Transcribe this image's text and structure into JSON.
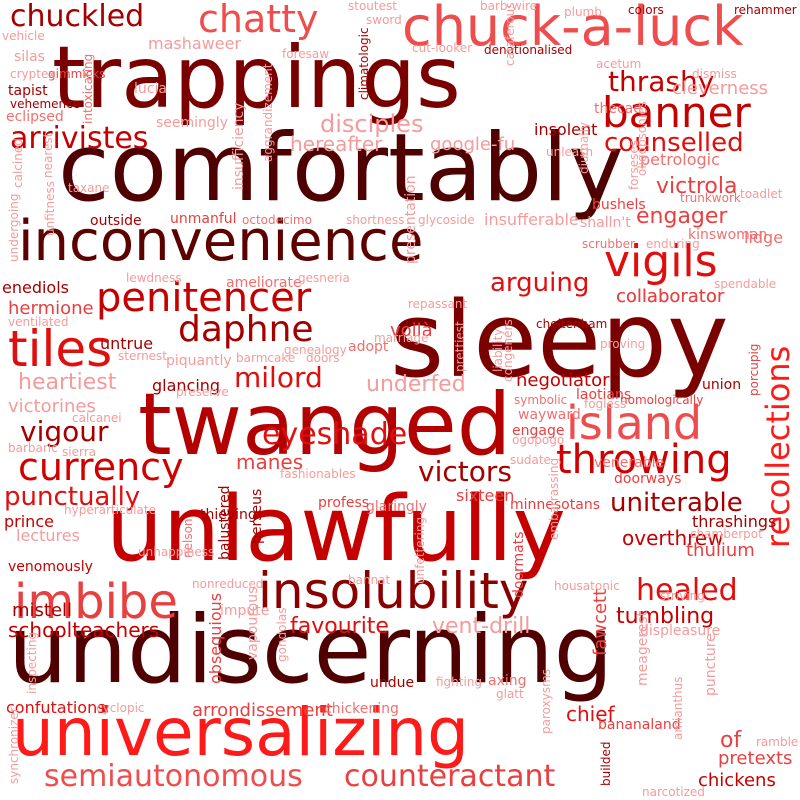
{
  "colors": {
    "background": "#ffffff",
    "palette": [
      "#4f0000",
      "#7a0000",
      "#a50000",
      "#c40000",
      "#e00f0f",
      "#ff1a1a",
      "#ef4d4d",
      "#f07070",
      "#f59b9b",
      "#fac0c0"
    ]
  },
  "words": [
    {
      "text": "trappings",
      "color": "#7a0000"
    },
    {
      "text": "comfortably",
      "color": "#4f0000"
    },
    {
      "text": "undiscerning",
      "color": "#4f0000"
    },
    {
      "text": "sleepy",
      "color": "#7a0000"
    },
    {
      "text": "unlawfully",
      "color": "#c40000"
    },
    {
      "text": "twanged",
      "color": "#b30000"
    },
    {
      "text": "inconvenience",
      "color": "#5c0000"
    },
    {
      "text": "universalizing",
      "color": "#ff1a1a"
    },
    {
      "text": "chuck-a-luck",
      "color": "#ef4d4d"
    },
    {
      "text": "insolubility",
      "color": "#8a0000"
    },
    {
      "text": "penitencer",
      "color": "#c40000"
    },
    {
      "text": "daphne",
      "color": "#a50000"
    },
    {
      "text": "tiles",
      "color": "#e00f0f"
    },
    {
      "text": "island",
      "color": "#ef4d4d"
    },
    {
      "text": "currency",
      "color": "#d10000"
    },
    {
      "text": "throwing",
      "color": "#d10000"
    },
    {
      "text": "imbibe",
      "color": "#e84040"
    },
    {
      "text": "recollections",
      "color": "#ff1a1a"
    },
    {
      "text": "banner",
      "color": "#c40000"
    },
    {
      "text": "vigils",
      "color": "#e00f0f"
    },
    {
      "text": "chatty",
      "color": "#ef4d4d"
    },
    {
      "text": "chuckled",
      "color": "#a50000"
    },
    {
      "text": "thrashy",
      "color": "#c40000"
    },
    {
      "text": "arrivistes",
      "color": "#c40000"
    },
    {
      "text": "eyeshade",
      "color": "#e00f0f"
    },
    {
      "text": "milord",
      "color": "#e00f0f"
    },
    {
      "text": "victors",
      "color": "#a50000"
    },
    {
      "text": "uniterable",
      "color": "#a50000"
    },
    {
      "text": "healed",
      "color": "#e00f0f"
    },
    {
      "text": "punctually",
      "color": "#e00f0f"
    },
    {
      "text": "semiautonomous",
      "color": "#ef4d4d"
    },
    {
      "text": "counteractant",
      "color": "#e84040"
    },
    {
      "text": "disciples",
      "color": "#f59b9b"
    },
    {
      "text": "counselled",
      "color": "#e00f0f"
    },
    {
      "text": "arguing",
      "color": "#e00f0f"
    },
    {
      "text": "vigour",
      "color": "#a50000"
    },
    {
      "text": "engager",
      "color": "#e84040"
    },
    {
      "text": "victrola",
      "color": "#e84040"
    },
    {
      "text": "heartiest",
      "color": "#f59b9b"
    },
    {
      "text": "underfed",
      "color": "#f59b9b"
    },
    {
      "text": "favourite",
      "color": "#e00f0f"
    },
    {
      "text": "vent-drill",
      "color": "#f59b9b"
    },
    {
      "text": "tumbling",
      "color": "#c40000"
    },
    {
      "text": "schoolteachers",
      "color": "#c40000"
    },
    {
      "text": "cleverness",
      "color": "#f59b9b"
    },
    {
      "text": "hermione",
      "color": "#e84040"
    },
    {
      "text": "negotiator",
      "color": "#c40000"
    },
    {
      "text": "collaborator",
      "color": "#e84040"
    },
    {
      "text": "victorines",
      "color": "#f59b9b"
    },
    {
      "text": "manes",
      "color": "#e84040"
    },
    {
      "text": "mistell",
      "color": "#a50000"
    },
    {
      "text": "prince",
      "color": "#c40000"
    },
    {
      "text": "lectures",
      "color": "#f59b9b"
    },
    {
      "text": "venomously",
      "color": "#c40000"
    },
    {
      "text": "overthrew",
      "color": "#c40000"
    },
    {
      "text": "thulium",
      "color": "#e84040"
    },
    {
      "text": "thrashings",
      "color": "#a50000"
    },
    {
      "text": "chickens",
      "color": "#c40000"
    },
    {
      "text": "pretexts",
      "color": "#e84040"
    },
    {
      "text": "of",
      "color": "#e84040"
    },
    {
      "text": "chief",
      "color": "#e00f0f"
    },
    {
      "text": "confutations",
      "color": "#e00f0f"
    },
    {
      "text": "arrondissement",
      "color": "#e84040"
    },
    {
      "text": "chickening",
      "color": "#f07070"
    },
    {
      "text": "hereafter",
      "color": "#f59b9b"
    },
    {
      "text": "google-fu",
      "color": "#f59b9b"
    },
    {
      "text": "insolent",
      "color": "#a50000"
    },
    {
      "text": "mashaweer",
      "color": "#f59b9b"
    },
    {
      "text": "untrue",
      "color": "#a50000"
    },
    {
      "text": "enediols",
      "color": "#a50000"
    },
    {
      "text": "glancing",
      "color": "#a50000"
    },
    {
      "text": "sixteen",
      "color": "#e84040"
    },
    {
      "text": "petrologic",
      "color": "#f07070"
    },
    {
      "text": "lidge",
      "color": "#f07070"
    },
    {
      "text": "displeasure",
      "color": "#f59b9b"
    },
    {
      "text": "bananaland",
      "color": "#e84040"
    },
    {
      "text": "fawcett",
      "color": "#e84040"
    },
    {
      "text": "obsequious",
      "color": "#e84040"
    },
    {
      "text": "outside",
      "color": "#a50000"
    },
    {
      "text": "unmanful",
      "color": "#e84040"
    },
    {
      "text": "octodecimo",
      "color": "#f07070"
    },
    {
      "text": "voilà",
      "color": "#e84040"
    },
    {
      "text": "insufferable",
      "color": "#f59b9b"
    },
    {
      "text": "shalln't",
      "color": "#f59b9b"
    },
    {
      "text": "bushels",
      "color": "#e84040"
    },
    {
      "text": "doormats",
      "color": "#e84040"
    },
    {
      "text": "balustered",
      "color": "#a50000"
    },
    {
      "text": "perseus",
      "color": "#a50000"
    },
    {
      "text": "nelson",
      "color": "#f07070"
    },
    {
      "text": "glaringly",
      "color": "#f07070"
    },
    {
      "text": "profess",
      "color": "#e84040"
    },
    {
      "text": "fashionables",
      "color": "#f59b9b"
    },
    {
      "text": "minnesotans",
      "color": "#e84040"
    },
    {
      "text": "doorways",
      "color": "#e84040"
    },
    {
      "text": "venerable",
      "color": "#f07070"
    },
    {
      "text": "sudate",
      "color": "#f59b9b"
    },
    {
      "text": "engage",
      "color": "#e84040"
    },
    {
      "text": "wayward",
      "color": "#f07070"
    },
    {
      "text": "union",
      "color": "#a50000"
    },
    {
      "text": "porcupig",
      "color": "#e84040"
    },
    {
      "text": "laotians",
      "color": "#e84040"
    },
    {
      "text": "nomologically",
      "color": "#e84040"
    },
    {
      "text": "symbolic",
      "color": "#f07070"
    },
    {
      "text": "fogless",
      "color": "#f59b9b"
    },
    {
      "text": "collaborator",
      "color": "#e84040"
    },
    {
      "text": "gimmicks",
      "color": "#e84040"
    },
    {
      "text": "lucia",
      "color": "#f59b9b"
    },
    {
      "text": "intoxicating",
      "color": "#f07070"
    },
    {
      "text": "insufficiency",
      "color": "#f59b9b"
    },
    {
      "text": "aggrandizement",
      "color": "#f59b9b"
    },
    {
      "text": "climatologic",
      "color": "#a50000"
    },
    {
      "text": "thecae",
      "color": "#f07070"
    },
    {
      "text": "acetum",
      "color": "#f59b9b"
    },
    {
      "text": "dismiss",
      "color": "#f59b9b"
    },
    {
      "text": "rehammer",
      "color": "#a50000"
    },
    {
      "text": "colors",
      "color": "#a50000"
    },
    {
      "text": "plumb",
      "color": "#f59b9b"
    },
    {
      "text": "barb-wire",
      "color": "#f59b9b"
    },
    {
      "text": "cut-looker",
      "color": "#f59b9b"
    },
    {
      "text": "denationalised",
      "color": "#a50000"
    },
    {
      "text": "stoutest",
      "color": "#f59b9b"
    },
    {
      "text": "sword",
      "color": "#f59b9b"
    },
    {
      "text": "foresaw",
      "color": "#f59b9b"
    },
    {
      "text": "vehicle",
      "color": "#f59b9b"
    },
    {
      "text": "silas",
      "color": "#f59b9b"
    },
    {
      "text": "cryptex",
      "color": "#f59b9b"
    },
    {
      "text": "tapist",
      "color": "#a50000"
    },
    {
      "text": "vehemence",
      "color": "#a50000"
    },
    {
      "text": "eclipsed",
      "color": "#f07070"
    },
    {
      "text": "seemingly",
      "color": "#f59b9b"
    },
    {
      "text": "calcined",
      "color": "#f59b9b"
    },
    {
      "text": "nearest",
      "color": "#f59b9b"
    },
    {
      "text": "taxane",
      "color": "#f59b9b"
    },
    {
      "text": "unfitness",
      "color": "#f59b9b"
    },
    {
      "text": "undergoing",
      "color": "#f59b9b"
    },
    {
      "text": "lewdness",
      "color": "#f59b9b"
    },
    {
      "text": "ameliorate",
      "color": "#f07070"
    },
    {
      "text": "gesneria",
      "color": "#f59b9b"
    },
    {
      "text": "shortness",
      "color": "#f59b9b"
    },
    {
      "text": "glycoside",
      "color": "#f59b9b"
    },
    {
      "text": "presentation",
      "color": "#f59b9b"
    },
    {
      "text": "unleash",
      "color": "#f59b9b"
    },
    {
      "text": "diurnally",
      "color": "#f59b9b"
    },
    {
      "text": "oligopsonies",
      "color": "#f59b9b"
    },
    {
      "text": "forseses",
      "color": "#f59b9b"
    },
    {
      "text": "trunkwork",
      "color": "#f07070"
    },
    {
      "text": "toadlet",
      "color": "#f59b9b"
    },
    {
      "text": "kinswoman",
      "color": "#f07070"
    },
    {
      "text": "enduring",
      "color": "#f59b9b"
    },
    {
      "text": "scrubber",
      "color": "#f07070"
    },
    {
      "text": "ventilated",
      "color": "#f59b9b"
    },
    {
      "text": "repassant",
      "color": "#f59b9b"
    },
    {
      "text": "genealogy",
      "color": "#f59b9b"
    },
    {
      "text": "adopt",
      "color": "#f07070"
    },
    {
      "text": "marriage",
      "color": "#f59b9b"
    },
    {
      "text": "cheltenham",
      "color": "#a50000"
    },
    {
      "text": "prettiest",
      "color": "#f59b9b"
    },
    {
      "text": "liability",
      "color": "#f59b9b"
    },
    {
      "text": "congeners",
      "color": "#f59b9b"
    },
    {
      "text": "spendable",
      "color": "#f59b9b"
    },
    {
      "text": "proving",
      "color": "#f59b9b"
    },
    {
      "text": "sternest",
      "color": "#f59b9b"
    },
    {
      "text": "piquantly",
      "color": "#f59b9b"
    },
    {
      "text": "barmcake",
      "color": "#f59b9b"
    },
    {
      "text": "doors",
      "color": "#f59b9b"
    },
    {
      "text": "preserve",
      "color": "#f59b9b"
    },
    {
      "text": "calcanei",
      "color": "#f59b9b"
    },
    {
      "text": "barbaric",
      "color": "#f59b9b"
    },
    {
      "text": "sierra",
      "color": "#f59b9b"
    },
    {
      "text": "ogopogo",
      "color": "#f59b9b"
    },
    {
      "text": "hyperarticulate",
      "color": "#f59b9b"
    },
    {
      "text": "thieving",
      "color": "#a50000"
    },
    {
      "text": "embarrassing",
      "color": "#f59b9b"
    },
    {
      "text": "chamberpot",
      "color": "#f59b9b"
    },
    {
      "text": "unhappiness",
      "color": "#f59b9b"
    },
    {
      "text": "nonreduced",
      "color": "#f59b9b"
    },
    {
      "text": "bannat",
      "color": "#f59b9b"
    },
    {
      "text": "unfettering",
      "color": "#f59b9b"
    },
    {
      "text": "housatonic",
      "color": "#f59b9b"
    },
    {
      "text": "striving",
      "color": "#f59b9b"
    },
    {
      "text": "impute",
      "color": "#f59b9b"
    },
    {
      "text": "vapourous",
      "color": "#f59b9b"
    },
    {
      "text": "gondolas",
      "color": "#f59b9b"
    },
    {
      "text": "meagerest",
      "color": "#f59b9b"
    },
    {
      "text": "puncture",
      "color": "#f59b9b"
    },
    {
      "text": "inspecting",
      "color": "#f59b9b"
    },
    {
      "text": "undue",
      "color": "#a50000"
    },
    {
      "text": "fighting",
      "color": "#f59b9b"
    },
    {
      "text": "axing",
      "color": "#f07070"
    },
    {
      "text": "glatt",
      "color": "#f59b9b"
    },
    {
      "text": "cyclopic",
      "color": "#f59b9b"
    },
    {
      "text": "paroxysms",
      "color": "#f59b9b"
    },
    {
      "text": "amianthus",
      "color": "#f59b9b"
    },
    {
      "text": "ramble",
      "color": "#f59b9b"
    },
    {
      "text": "synchronizer",
      "color": "#f59b9b"
    },
    {
      "text": "builded",
      "color": "#a50000"
    },
    {
      "text": "narcotized",
      "color": "#f59b9b"
    },
    {
      "text": "cataferous",
      "color": "#f59b9b"
    }
  ]
}
